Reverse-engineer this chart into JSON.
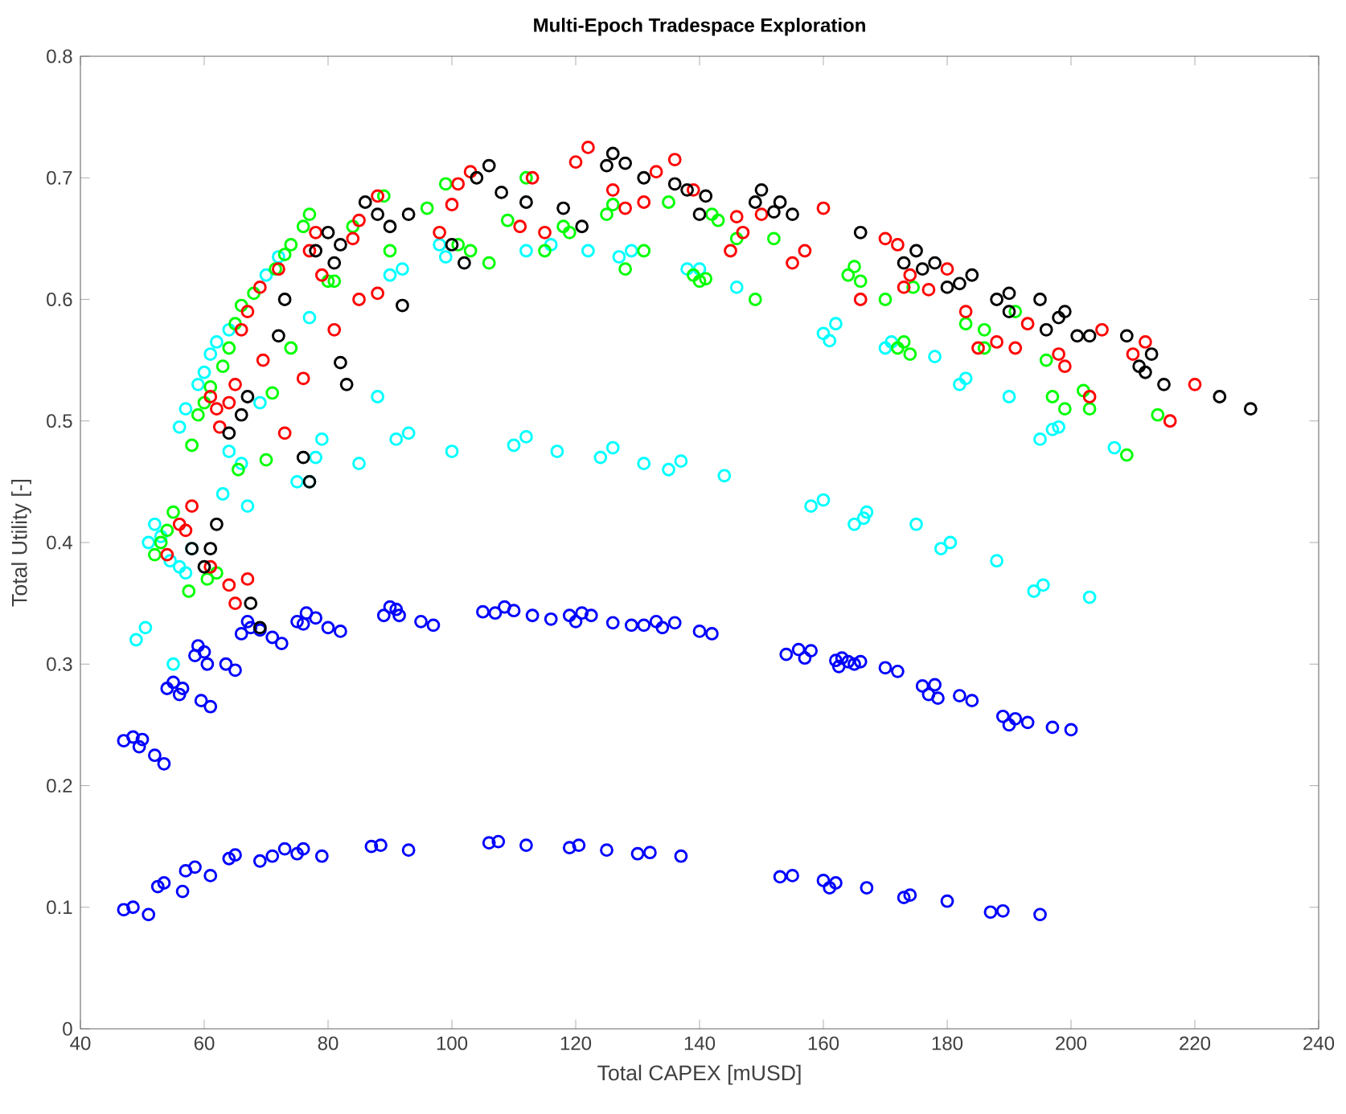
{
  "chart_data": {
    "type": "scatter",
    "title": "Multi-Epoch Tradespace Exploration",
    "xlabel": "Total CAPEX [mUSD]",
    "ylabel": "Total Utility [-]",
    "xlim": [
      40,
      240
    ],
    "ylim": [
      0,
      0.8
    ],
    "xticks": [
      40,
      60,
      80,
      100,
      120,
      140,
      160,
      180,
      200,
      220,
      240
    ],
    "yticks": [
      0,
      0.1,
      0.2,
      0.3,
      0.4,
      0.5,
      0.6,
      0.7,
      0.8
    ],
    "marker": "circle",
    "series": [
      {
        "color": "#0000ff",
        "x": [
          47,
          48.5,
          51,
          52.5,
          53.5,
          56.5,
          57,
          58.5,
          61,
          64,
          65,
          69,
          71,
          73,
          75,
          76,
          79,
          87,
          88.5,
          93,
          106,
          107.5,
          112,
          119,
          120.5,
          125,
          130,
          132,
          137,
          153,
          155,
          160,
          161,
          162,
          167,
          173,
          174,
          180,
          187,
          189,
          195,
          47,
          48.5,
          49.5,
          50,
          52,
          53.5,
          54,
          55,
          56,
          56.5,
          58.5,
          59,
          60,
          60.5,
          59.5,
          61,
          63.5,
          65,
          66,
          67,
          67.5,
          69,
          71,
          72.5,
          75,
          76.5,
          76,
          78,
          80,
          82,
          89,
          90,
          91,
          91.5,
          95,
          97,
          105,
          107,
          108.5,
          110,
          113,
          116,
          119,
          120,
          121,
          122.5,
          126,
          129,
          131,
          133,
          134,
          136,
          140,
          142,
          154,
          156,
          157,
          158,
          162,
          162.5,
          163,
          164,
          165,
          166,
          170,
          172,
          176,
          177,
          178,
          178.5,
          182,
          184,
          189,
          190,
          191,
          193,
          197,
          200
        ],
        "values": [
          0.098,
          0.1,
          0.094,
          0.117,
          0.12,
          0.113,
          0.13,
          0.133,
          0.126,
          0.14,
          0.143,
          0.138,
          0.142,
          0.148,
          0.144,
          0.148,
          0.142,
          0.15,
          0.151,
          0.147,
          0.153,
          0.154,
          0.151,
          0.149,
          0.151,
          0.147,
          0.144,
          0.145,
          0.142,
          0.125,
          0.126,
          0.122,
          0.116,
          0.12,
          0.116,
          0.108,
          0.11,
          0.105,
          0.096,
          0.097,
          0.094,
          0.237,
          0.24,
          0.232,
          0.238,
          0.225,
          0.218,
          0.28,
          0.285,
          0.275,
          0.28,
          0.307,
          0.315,
          0.31,
          0.3,
          0.27,
          0.265,
          0.3,
          0.295,
          0.325,
          0.335,
          0.33,
          0.328,
          0.322,
          0.317,
          0.335,
          0.342,
          0.333,
          0.338,
          0.33,
          0.327,
          0.34,
          0.347,
          0.345,
          0.34,
          0.335,
          0.332,
          0.343,
          0.342,
          0.347,
          0.344,
          0.34,
          0.337,
          0.34,
          0.335,
          0.342,
          0.34,
          0.334,
          0.332,
          0.332,
          0.335,
          0.33,
          0.334,
          0.327,
          0.325,
          0.308,
          0.312,
          0.305,
          0.311,
          0.303,
          0.298,
          0.305,
          0.302,
          0.3,
          0.302,
          0.297,
          0.294,
          0.282,
          0.275,
          0.283,
          0.272,
          0.274,
          0.27,
          0.257,
          0.25,
          0.255,
          0.252,
          0.248,
          0.246
        ]
      },
      {
        "color": "#00ffff",
        "x": [
          49,
          50.5,
          51,
          52,
          53,
          54.5,
          55,
          56,
          57,
          58,
          56,
          57,
          59,
          60,
          61,
          62,
          64,
          67,
          63,
          64,
          66,
          69,
          70,
          72,
          77,
          78,
          79,
          75,
          77,
          85,
          91,
          93,
          100,
          88,
          90,
          92,
          98,
          99,
          110,
          112,
          117,
          124,
          126,
          131,
          135,
          137,
          144,
          112,
          116,
          122,
          127,
          129,
          138,
          140,
          146,
          158,
          160,
          165,
          166.5,
          167,
          175,
          179,
          180.5,
          188,
          194,
          195.5,
          203,
          160,
          162,
          161,
          170,
          171,
          178,
          182,
          183,
          190,
          197,
          195,
          198,
          207
        ],
        "values": [
          0.32,
          0.33,
          0.4,
          0.415,
          0.405,
          0.385,
          0.3,
          0.38,
          0.375,
          0.395,
          0.495,
          0.51,
          0.53,
          0.54,
          0.555,
          0.565,
          0.575,
          0.43,
          0.44,
          0.475,
          0.465,
          0.515,
          0.62,
          0.635,
          0.585,
          0.47,
          0.485,
          0.45,
          0.45,
          0.465,
          0.485,
          0.49,
          0.475,
          0.52,
          0.62,
          0.625,
          0.645,
          0.635,
          0.48,
          0.487,
          0.475,
          0.47,
          0.478,
          0.465,
          0.46,
          0.467,
          0.455,
          0.64,
          0.645,
          0.64,
          0.635,
          0.64,
          0.625,
          0.625,
          0.61,
          0.43,
          0.435,
          0.415,
          0.42,
          0.425,
          0.415,
          0.395,
          0.4,
          0.385,
          0.36,
          0.365,
          0.355,
          0.572,
          0.58,
          0.566,
          0.56,
          0.565,
          0.553,
          0.53,
          0.535,
          0.52,
          0.493,
          0.485,
          0.495,
          0.478
        ]
      },
      {
        "color": "#00ff00",
        "x": [
          52,
          53,
          54,
          55,
          57.5,
          58,
          59,
          60,
          61,
          60.5,
          62,
          63,
          64,
          65,
          65.5,
          66,
          68,
          70,
          71,
          71.5,
          73,
          74,
          74,
          76,
          77,
          80,
          81,
          84,
          89,
          90,
          96,
          99,
          101,
          103,
          106,
          109,
          112,
          115,
          118,
          119,
          125,
          126,
          128,
          131,
          135,
          139,
          140,
          141,
          143,
          142,
          149,
          146,
          152,
          164,
          165,
          166,
          170,
          172,
          173,
          174,
          174.5,
          183,
          186,
          186,
          191,
          196,
          197,
          199,
          202,
          203,
          209,
          214
        ],
        "values": [
          0.39,
          0.4,
          0.41,
          0.425,
          0.36,
          0.48,
          0.505,
          0.515,
          0.528,
          0.37,
          0.375,
          0.545,
          0.56,
          0.58,
          0.46,
          0.595,
          0.605,
          0.468,
          0.523,
          0.625,
          0.637,
          0.645,
          0.56,
          0.66,
          0.67,
          0.615,
          0.615,
          0.66,
          0.685,
          0.64,
          0.675,
          0.695,
          0.645,
          0.64,
          0.63,
          0.665,
          0.7,
          0.64,
          0.66,
          0.655,
          0.67,
          0.678,
          0.625,
          0.64,
          0.68,
          0.62,
          0.615,
          0.617,
          0.665,
          0.67,
          0.6,
          0.65,
          0.65,
          0.62,
          0.627,
          0.615,
          0.6,
          0.56,
          0.565,
          0.555,
          0.61,
          0.58,
          0.575,
          0.56,
          0.59,
          0.55,
          0.52,
          0.51,
          0.525,
          0.51,
          0.472,
          0.505
        ]
      },
      {
        "color": "#ff0000",
        "x": [
          54,
          56,
          57,
          58,
          61,
          64,
          65,
          67,
          61,
          62,
          62.5,
          64,
          65,
          66,
          67,
          69,
          69.5,
          72,
          73,
          76,
          77,
          78,
          79,
          81,
          84,
          85,
          88,
          85,
          88,
          98,
          100,
          101,
          103,
          111,
          113,
          115,
          120,
          122,
          126,
          128,
          131,
          133,
          136,
          139,
          145,
          147,
          146,
          150,
          155,
          157,
          160,
          166,
          170,
          172,
          173,
          174,
          177,
          180,
          183,
          185,
          188,
          191,
          193,
          198,
          199,
          203,
          205,
          210,
          212,
          216,
          220
        ],
        "values": [
          0.39,
          0.415,
          0.41,
          0.43,
          0.38,
          0.365,
          0.35,
          0.37,
          0.52,
          0.51,
          0.495,
          0.515,
          0.53,
          0.575,
          0.59,
          0.61,
          0.55,
          0.625,
          0.49,
          0.535,
          0.64,
          0.655,
          0.62,
          0.575,
          0.65,
          0.665,
          0.685,
          0.6,
          0.605,
          0.655,
          0.678,
          0.695,
          0.705,
          0.66,
          0.7,
          0.655,
          0.713,
          0.725,
          0.69,
          0.675,
          0.68,
          0.705,
          0.715,
          0.69,
          0.64,
          0.655,
          0.668,
          0.67,
          0.63,
          0.64,
          0.675,
          0.6,
          0.65,
          0.645,
          0.61,
          0.62,
          0.608,
          0.625,
          0.59,
          0.56,
          0.565,
          0.56,
          0.58,
          0.555,
          0.545,
          0.52,
          0.575,
          0.555,
          0.565,
          0.5,
          0.53
        ]
      },
      {
        "color": "#000000",
        "x": [
          58,
          60,
          61,
          62,
          64,
          66,
          67,
          67.5,
          69,
          72,
          73,
          76,
          77,
          78,
          80,
          81,
          82,
          83,
          82,
          86,
          88,
          90,
          92,
          93,
          100,
          102,
          104,
          106,
          108,
          112,
          118,
          121,
          125,
          126,
          128,
          131,
          136,
          138,
          140,
          141,
          149,
          150,
          152,
          153,
          155,
          166,
          173,
          175,
          176,
          178,
          180,
          182,
          184,
          188,
          190,
          190,
          195,
          196,
          198,
          199,
          201,
          203,
          209,
          211,
          212,
          213,
          215,
          224,
          229
        ],
        "values": [
          0.395,
          0.38,
          0.395,
          0.415,
          0.49,
          0.505,
          0.52,
          0.35,
          0.33,
          0.57,
          0.6,
          0.47,
          0.45,
          0.64,
          0.655,
          0.63,
          0.645,
          0.53,
          0.548,
          0.68,
          0.67,
          0.66,
          0.595,
          0.67,
          0.645,
          0.63,
          0.7,
          0.71,
          0.688,
          0.68,
          0.675,
          0.66,
          0.71,
          0.72,
          0.712,
          0.7,
          0.695,
          0.69,
          0.67,
          0.685,
          0.68,
          0.69,
          0.672,
          0.68,
          0.67,
          0.655,
          0.63,
          0.64,
          0.625,
          0.63,
          0.61,
          0.613,
          0.62,
          0.6,
          0.605,
          0.59,
          0.6,
          0.575,
          0.585,
          0.59,
          0.57,
          0.57,
          0.57,
          0.545,
          0.54,
          0.555,
          0.53,
          0.52,
          0.51
        ]
      }
    ]
  }
}
